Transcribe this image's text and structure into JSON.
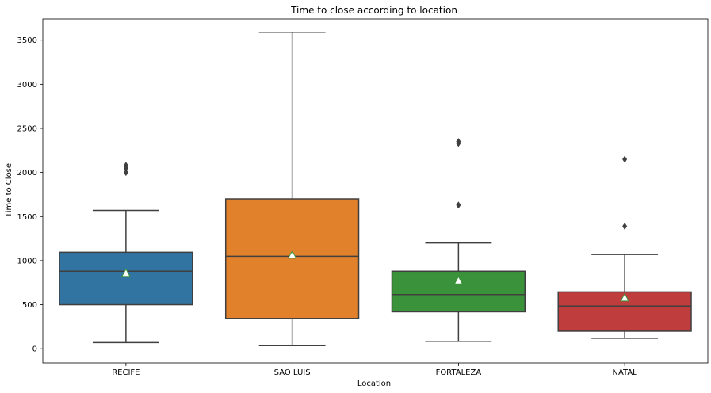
{
  "chart_data": {
    "type": "box",
    "title": "Time to close according to location",
    "xlabel": "Location",
    "ylabel": "Time to Close",
    "ylim": [
      -160,
      3740
    ],
    "yticks": [
      0,
      500,
      1000,
      1500,
      2000,
      2500,
      3000,
      3500
    ],
    "grid": false,
    "categories": [
      "RECIFE",
      "SAO LUIS",
      "FORTALEZA",
      "NATAL"
    ],
    "boxes": [
      {
        "category": "RECIFE",
        "color": "#3274a1",
        "whisker_low": 70,
        "q1": 500,
        "median": 880,
        "q3": 1095,
        "whisker_high": 1570,
        "mean": 860,
        "outliers": [
          2000,
          2050,
          2080
        ]
      },
      {
        "category": "SAO LUIS",
        "color": "#e1812c",
        "whisker_low": 35,
        "q1": 345,
        "median": 1050,
        "q3": 1700,
        "whisker_high": 3590,
        "mean": 1065,
        "outliers": []
      },
      {
        "category": "FORTALEZA",
        "color": "#3a923a",
        "whisker_low": 85,
        "q1": 420,
        "median": 615,
        "q3": 880,
        "whisker_high": 1200,
        "mean": 775,
        "outliers": [
          1630,
          2330,
          2350
        ]
      },
      {
        "category": "NATAL",
        "color": "#c03d3e",
        "whisker_low": 120,
        "q1": 200,
        "median": 485,
        "q3": 645,
        "whisker_high": 1070,
        "mean": 580,
        "outliers": [
          1390,
          2150
        ]
      }
    ]
  }
}
